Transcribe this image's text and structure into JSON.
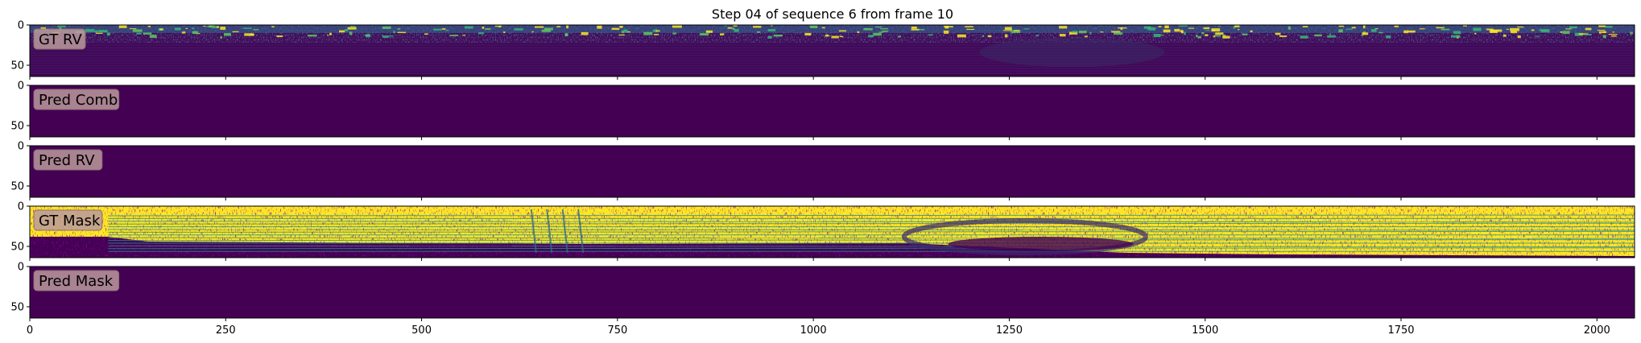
{
  "figure": {
    "title": "Step 04 of sequence 6 from frame 10"
  },
  "chart_data": {
    "type": "heatmap",
    "title": "Step 04 of sequence 6 from frame 10",
    "shared_x": true,
    "xlim": [
      0,
      2048
    ],
    "ylim": [
      64,
      0
    ],
    "xticks": [
      0,
      250,
      500,
      750,
      1000,
      1250,
      1500,
      1750,
      2000
    ],
    "yticks": [
      0,
      50
    ],
    "colormap": "viridis",
    "colors": {
      "viridis_low": "#440154",
      "viridis_mid": "#21918c",
      "viridis_high": "#fde725",
      "label_box": "#bb9a9c"
    },
    "panels": [
      {
        "label": "GT RV",
        "content": "range-image"
      },
      {
        "label": "Pred Comb",
        "content": "constant-low"
      },
      {
        "label": "Pred RV",
        "content": "constant-low"
      },
      {
        "label": "GT Mask",
        "content": "binary-mask"
      },
      {
        "label": "Pred Mask",
        "content": "constant-low"
      }
    ]
  }
}
